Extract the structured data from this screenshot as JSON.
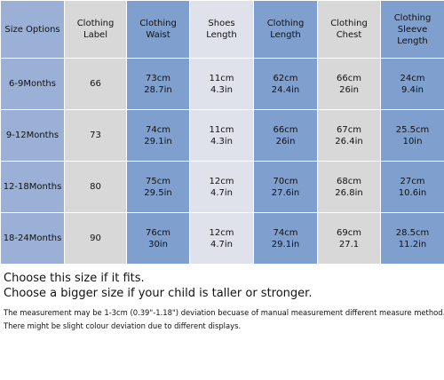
{
  "table": {
    "header": [
      "Size Options",
      "Clothing Label",
      "Clothing Waist",
      "Shoes Length",
      "Clothing Length",
      "Clothing Chest",
      "Clothing Sleeve Length"
    ],
    "rows": [
      [
        "6-9Months",
        "66",
        [
          "73cm",
          "28.7in"
        ],
        [
          "11cm",
          "4.3in"
        ],
        [
          "62cm",
          "24.4in"
        ],
        [
          "66cm",
          "26in"
        ],
        [
          "24cm",
          "9.4in"
        ]
      ],
      [
        "9-12Months",
        "73",
        [
          "74cm",
          "29.1in"
        ],
        [
          "11cm",
          "4.3in"
        ],
        [
          "66cm",
          "26in"
        ],
        [
          "67cm",
          "26.4in"
        ],
        [
          "25.5cm",
          "10in"
        ]
      ],
      [
        "12-18Months",
        "80",
        [
          "75cm",
          "29.5in"
        ],
        [
          "12cm",
          "4.7in"
        ],
        [
          "70cm",
          "27.6in"
        ],
        [
          "68cm",
          "26.8in"
        ],
        [
          "27cm",
          "10.6in"
        ]
      ],
      [
        "18-24Months",
        "90",
        [
          "76cm",
          "30in"
        ],
        [
          "12cm",
          "4.7in"
        ],
        [
          "74cm",
          "29.1in"
        ],
        [
          "69cm",
          "27.1"
        ],
        [
          "28.5cm",
          "11.2in"
        ]
      ]
    ]
  },
  "notes": [
    "Choose this size if it fits.",
    "Choose a bigger size if your child is taller or stronger.",
    "The measurement may be 1-3cm (0.39\"-1.18\") deviation becuase of manual measurement different measure method.",
    "There might be slight colour deviation due to different displays."
  ]
}
